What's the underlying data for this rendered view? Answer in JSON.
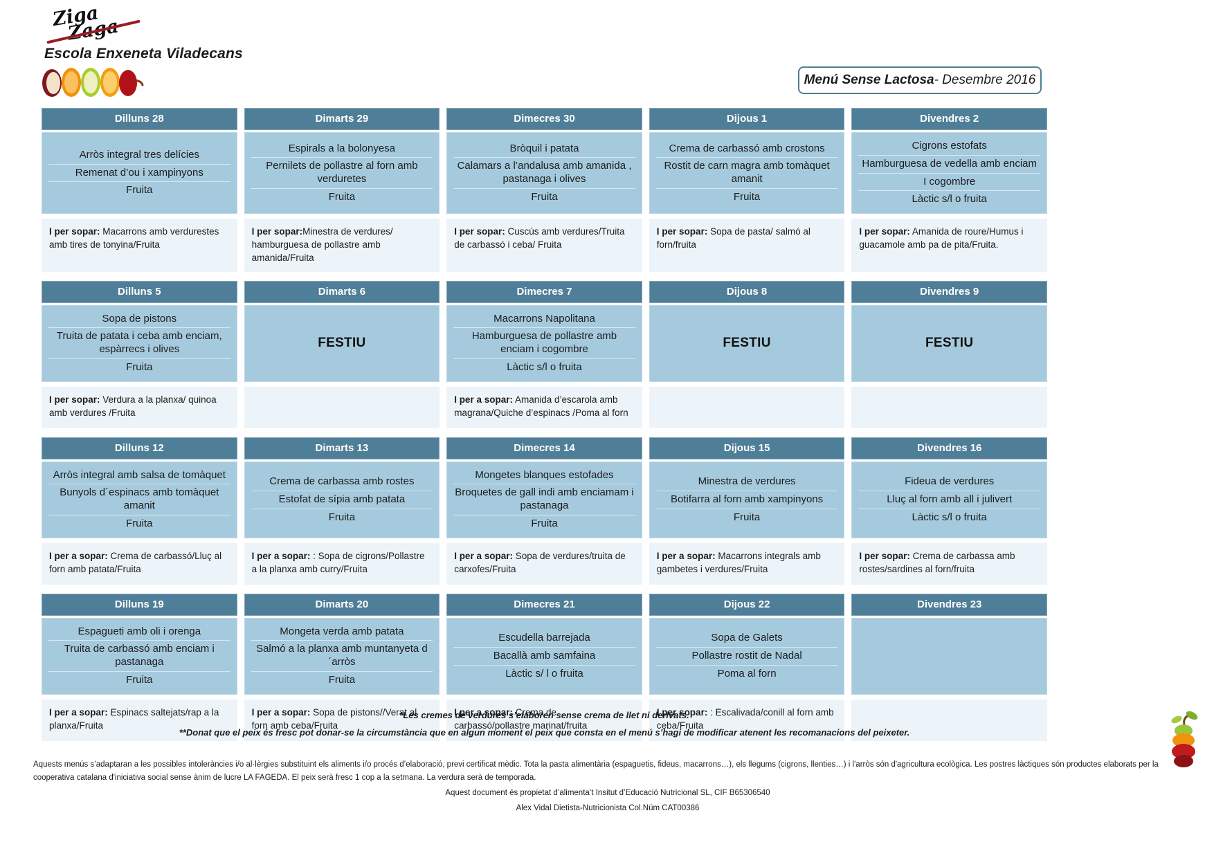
{
  "branding": {
    "logo_text_line1": "Ziga",
    "logo_text_line2": "Zaga",
    "school_name": "Escola Enxeneta Viladecans"
  },
  "title": {
    "main": "Menú Sense Lactosa",
    "suffix": " - Desembre 2016"
  },
  "colors": {
    "header_bg": "#4f7e98",
    "content_bg": "#a6cadd",
    "sopar_bg": "#ecf4f9",
    "accent_red": "#9b1b24"
  },
  "weeks": [
    {
      "days": [
        {
          "header": "Dilluns 28",
          "lines": [
            "Arròs integral tres delícies",
            "Remenat d’ou i xampinyons",
            "Fruita"
          ],
          "special": "",
          "sopar_label": "I per sopar:",
          "sopar_text": " Macarrons amb verdurestes amb tires de tonyina/Fruita"
        },
        {
          "header": "Dimarts 29",
          "lines": [
            "Espirals a la bolonyesa",
            "Pernilets de pollastre al forn amb verduretes",
            "Fruita"
          ],
          "special": "",
          "sopar_label": "I per sopar:",
          "sopar_text": "Minestra de verdures/ hamburguesa de pollastre amb amanida/Fruita"
        },
        {
          "header": "Dimecres 30",
          "lines": [
            "Bròquil i patata",
            "Calamars a l’andalusa amb amanida , pastanaga i olives",
            "Fruita"
          ],
          "special": "",
          "sopar_label": "I per sopar:",
          "sopar_text": " Cuscús amb verdures/Truita de carbassó i ceba/ Fruita"
        },
        {
          "header": "Dijous 1",
          "lines": [
            "Crema de carbassó amb crostons",
            "Rostit de carn magra amb tomàquet amanit",
            "Fruita"
          ],
          "special": "",
          "sopar_label": "I per sopar:",
          "sopar_text": " Sopa de pasta/ salmó al forn/fruita"
        },
        {
          "header": "Divendres 2",
          "lines": [
            "Cigrons estofats",
            "Hamburguesa de vedella amb enciam",
            "I cogombre",
            "Làctic s/l o fruita"
          ],
          "special": "",
          "sopar_label": "I per sopar:",
          "sopar_text": "  Amanida de roure/Humus i guacamole amb pa de pita/Fruita."
        }
      ]
    },
    {
      "days": [
        {
          "header": "Dilluns 5",
          "lines": [
            "Sopa de pistons",
            "Truita de patata i ceba amb enciam, espàrrecs i olives",
            "Fruita"
          ],
          "special": "",
          "sopar_label": "I per sopar:",
          "sopar_text": " Verdura a la planxa/ quinoa amb verdures /Fruita"
        },
        {
          "header": "Dimarts 6",
          "lines": [],
          "special": "FESTIU",
          "sopar_label": "",
          "sopar_text": ""
        },
        {
          "header": "Dimecres 7",
          "lines": [
            "Macarrons Napolitana",
            "Hamburguesa de pollastre amb enciam i cogombre",
            "Làctic s/l o fruita"
          ],
          "special": "",
          "sopar_label": "I per a sopar:",
          "sopar_text": " Amanida d’escarola amb magrana/Quiche d’espinacs  /Poma al forn"
        },
        {
          "header": "Dijous 8",
          "lines": [],
          "special": "FESTIU",
          "sopar_label": "",
          "sopar_text": ""
        },
        {
          "header": "Divendres 9",
          "lines": [],
          "special": "FESTIU",
          "sopar_label": "",
          "sopar_text": ""
        }
      ]
    },
    {
      "days": [
        {
          "header": "Dilluns 12",
          "lines": [
            "Arròs integral amb salsa de tomàquet",
            "Bunyols d´espinacs amb tomàquet amanit",
            "Fruita"
          ],
          "special": "",
          "sopar_label": "I per a sopar:",
          "sopar_text": " Crema de carbassó/Lluç al forn amb patata/Fruita"
        },
        {
          "header": "Dimarts 13",
          "lines": [
            "Crema de carbassa amb rostes",
            "Estofat de sípia amb patata",
            "Fruita"
          ],
          "special": "",
          "sopar_label": "I per a sopar:",
          "sopar_text": " :  Sopa de cigrons/Pollastre a la planxa amb curry/Fruita"
        },
        {
          "header": "Dimecres 14",
          "lines": [
            "Mongetes blanques estofades",
            "Broquetes de gall indi  amb enciamam i pastanaga",
            "Fruita"
          ],
          "special": "",
          "sopar_label": "I  per a sopar:",
          "sopar_text": "  Sopa de verdures/truita de carxofes/Fruita"
        },
        {
          "header": "Dijous 15",
          "lines": [
            "Minestra de verdures",
            "Botifarra al forn amb xampinyons",
            "Fruita"
          ],
          "special": "",
          "sopar_label": "I  per a sopar:",
          "sopar_text": " Macarrons integrals amb gambetes i verdures/Fruita"
        },
        {
          "header": "Divendres 16",
          "lines": [
            "Fideua de verdures",
            "Lluç al forn amb all i julivert",
            "Làctic s/l o fruita"
          ],
          "special": "",
          "sopar_label": "I per sopar:",
          "sopar_text": " Crema de carbassa amb rostes/sardines al forn/fruita"
        }
      ]
    },
    {
      "days": [
        {
          "header": "Dilluns 19",
          "lines": [
            "Espagueti amb oli i orenga",
            "Truita de carbassó amb enciam i pastanaga",
            "Fruita"
          ],
          "special": "",
          "sopar_label": "I per a sopar:",
          "sopar_text": "  Espinacs saltejats/rap a la planxa/Fruita"
        },
        {
          "header": "Dimarts 20",
          "lines": [
            "Mongeta verda amb patata",
            "Salmó a la planxa amb muntanyeta d´arròs",
            "Fruita"
          ],
          "special": "",
          "sopar_label": "I per a sopar:",
          "sopar_text": "  Sopa de pistons//Verat al forn amb ceba/Fruita"
        },
        {
          "header": "Dimecres 21",
          "lines": [
            "Escudella barrejada",
            "Bacallà amb samfaina",
            "Làctic s/ l o fruita"
          ],
          "special": "",
          "sopar_label": "I  per a sopar:",
          "sopar_text": " Crema de carbassó/pollastre marinat/fruita"
        },
        {
          "header": "Dijous 22",
          "lines": [
            "Sopa de Galets",
            "Pollastre rostit de Nadal",
            "Poma al forn"
          ],
          "special": "",
          "sopar_label": "I per sopar:",
          "sopar_text": " : Escalivada/conill al forn amb ceba/Fruita"
        },
        {
          "header": "Divendres 23",
          "lines": [],
          "special": "",
          "sopar_label": "",
          "sopar_text": ""
        }
      ]
    }
  ],
  "footnotes": {
    "note1": "*Les cremes de verdures s’elaboren sense crema de llet ni derivats.",
    "note2": "**Donat que el peix és fresc pot donar-se la circumstància que en algun moment el peix que consta en el menú s’hagi de modificar atenent les recomanacions del peixeter."
  },
  "legal": {
    "line1": "Aquests menús s’adaptaran a les possibles intoleràncies i/o al·lèrgies substituint els aliments i/o procés d’elaboració, previ certificat mèdic. Tota la pasta alimentària (espaguetis, fideus, macarrons…), els llegums (cigrons, llenties…) i l'arròs són d'agricultura ecològica. Les postres làctiques són productes elaborats per la cooperativa catalana d'iniciativa social sense ànim de lucre LA FAGEDA. El peix serà fresc 1 cop a la setmana. La verdura serà de temporada.",
    "line2": "Aquest document és propietat d’alimenta’t Insitut d’Educació Nutricional SL, CIF B65306540",
    "line3": "Alex Vidal Dietista-Nutricionista Col.Núm CAT00386"
  }
}
